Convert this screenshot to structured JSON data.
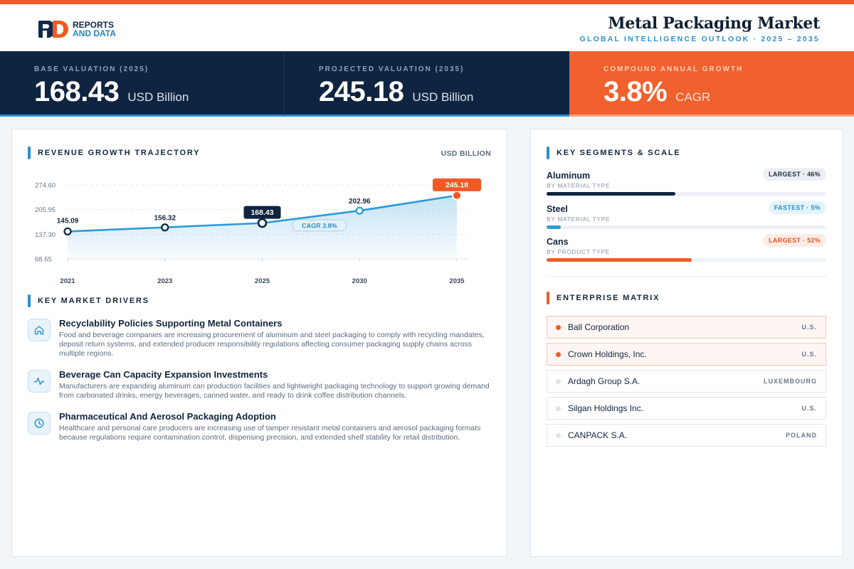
{
  "brand": {
    "line1": "REPORTS",
    "line2": "AND DATA"
  },
  "header": {
    "title": "Metal Packaging Market",
    "subtitle": "GLOBAL INTELLIGENCE OUTLOOK · 2025 – 2035"
  },
  "stats": [
    {
      "label": "BASE VALUATION (2025)",
      "value": "168.43",
      "unit": "USD Billion"
    },
    {
      "label": "PROJECTED VALUATION (2035)",
      "value": "245.18",
      "unit": "USD Billion"
    },
    {
      "label": "COMPOUND ANNUAL GROWTH",
      "value": "3.8%",
      "unit": "CAGR"
    }
  ],
  "chart_section": {
    "title": "REVENUE GROWTH TRAJECTORY",
    "unit": "USD BILLION"
  },
  "chart_data": {
    "type": "area",
    "categories": [
      "2021",
      "2023",
      "2025",
      "2030",
      "2035"
    ],
    "values": [
      145.09,
      156.32,
      168.43,
      202.96,
      245.18
    ],
    "value_labels": [
      "145.09",
      "156.32",
      "168.43",
      "202.96",
      "245.18"
    ],
    "y_ticks": [
      "274.60",
      "205.95",
      "137.30",
      "68.65"
    ],
    "ylim": [
      68.65,
      274.6
    ],
    "annotation": "CAGR 3.8%",
    "highlight_index": 2,
    "end_index": 4,
    "grid": true,
    "colors": {
      "line": "#2b9bd4",
      "end": "#f15a24",
      "highlight": "#0f2440"
    }
  },
  "drivers_section": {
    "title": "KEY MARKET DRIVERS"
  },
  "drivers": [
    {
      "icon": "home-icon",
      "title": "Recyclability Policies Supporting Metal Containers",
      "desc": "Food and beverage companies are increasing procurement of aluminum and steel packaging to comply with recycling mandates, deposit return systems, and extended producer responsibility regulations affecting consumer packaging supply chains across multiple regions."
    },
    {
      "icon": "activity-icon",
      "title": "Beverage Can Capacity Expansion Investments",
      "desc": "Manufacturers are expanding aluminum can production facilities and lightweight packaging technology to support growing demand from carbonated drinks, energy beverages, canned water, and ready to drink coffee distribution channels."
    },
    {
      "icon": "clock-icon",
      "title": "Pharmaceutical And Aerosol Packaging Adoption",
      "desc": "Healthcare and personal care producers are increasing use of tamper resistant metal containers and aerosol packaging formats because regulations require contamination control, dispensing precision, and extended shelf stability for retail distribution."
    }
  ],
  "segments_section": {
    "title": "KEY SEGMENTS & SCALE"
  },
  "segments": [
    {
      "name": "Aluminum",
      "sub": "BY MATERIAL TYPE",
      "badge": "LARGEST · 46%",
      "share": 0.46,
      "color": "#0f2440",
      "badge_bg": "#eceff3",
      "badge_fg": "#1f2d40"
    },
    {
      "name": "Steel",
      "sub": "BY MATERIAL TYPE",
      "badge": "FASTEST · 5%",
      "share": 0.05,
      "color": "#2b9bd4",
      "badge_bg": "#e5f3fb",
      "badge_fg": "#2b8fcf"
    },
    {
      "name": "Cans",
      "sub": "BY PRODUCT TYPE",
      "badge": "LARGEST · 52%",
      "share": 0.52,
      "color": "#f15a24",
      "badge_bg": "#fdece4",
      "badge_fg": "#e5562a"
    }
  ],
  "enterprise_section": {
    "title": "ENTERPRISE MATRIX"
  },
  "enterprises": [
    {
      "name": "Ball Corporation",
      "location": "U.S.",
      "highlight": true
    },
    {
      "name": "Crown Holdings, Inc.",
      "location": "U.S.",
      "highlight": true
    },
    {
      "name": "Ardagh Group S.A.",
      "location": "LUXEMBOURG",
      "highlight": false
    },
    {
      "name": "Silgan Holdings Inc.",
      "location": "U.S.",
      "highlight": false
    },
    {
      "name": "CANPACK S.A.",
      "location": "POLAND",
      "highlight": false
    }
  ]
}
